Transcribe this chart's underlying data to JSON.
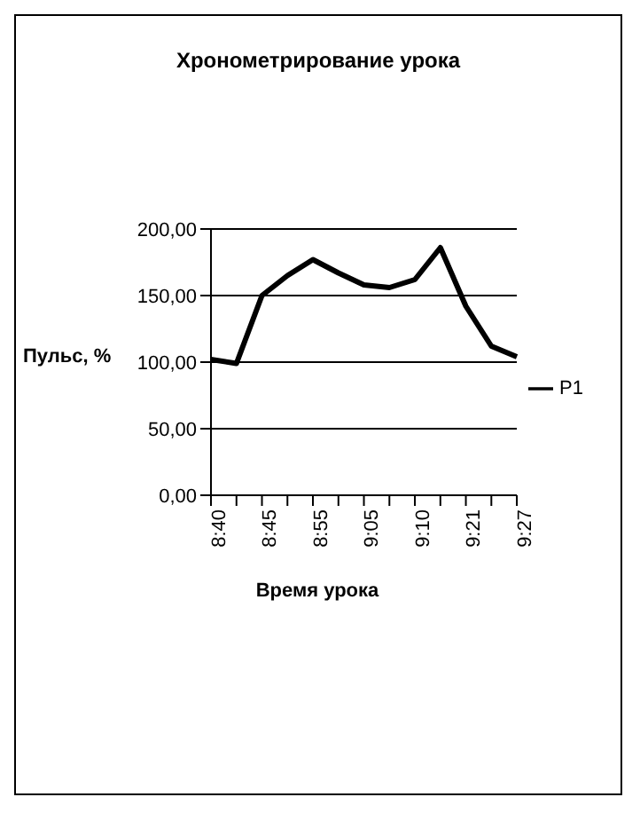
{
  "chart_data": {
    "type": "line",
    "title": "Хронометрирование урока",
    "xlabel": "Время урока",
    "ylabel": "Пульс, %",
    "categories": [
      "8:40",
      null,
      "8:45",
      null,
      "8:55",
      null,
      "9:05",
      null,
      "9:10",
      null,
      "9:21",
      null,
      "9:27"
    ],
    "series": [
      {
        "name": "Р1",
        "color": "#000000",
        "values": [
          102,
          99,
          150,
          165,
          177,
          167,
          158,
          156,
          162,
          186,
          142,
          112,
          104
        ]
      }
    ],
    "ylim": [
      0,
      200
    ],
    "yticks": [
      {
        "value": 0,
        "label": "0,00"
      },
      {
        "value": 50,
        "label": "50,00"
      },
      {
        "value": 100,
        "label": "100,00"
      },
      {
        "value": 150,
        "label": "150,00"
      },
      {
        "value": 200,
        "label": "200,00"
      }
    ],
    "grid": "y",
    "legend": "right",
    "marker": "none",
    "line_style": "solid"
  }
}
